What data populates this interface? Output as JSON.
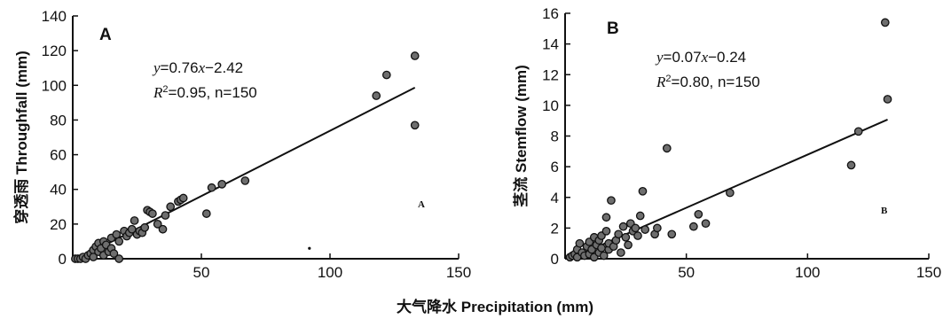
{
  "xlabel": "大气降水 Precipitation (mm)",
  "chart_data": [
    {
      "type": "scatter",
      "panel_label": "A",
      "corner_label": "A",
      "ylabel": "穿透雨 Throughfall (mm)",
      "xlim": [
        0,
        150
      ],
      "ylim": [
        0,
        140
      ],
      "xticks": [
        50,
        100,
        150
      ],
      "yticks": [
        0,
        20,
        40,
        60,
        80,
        100,
        120,
        140
      ],
      "equation": {
        "y": "y",
        "rhs": "=0.76",
        "x": "x",
        "const": "−2.42",
        "r2_prefix": "R",
        "r2_rest": "=0.95, n=150"
      },
      "fit": {
        "slope": 0.76,
        "intercept": -2.42,
        "x_range": [
          2,
          133
        ]
      },
      "points": [
        [
          1,
          0
        ],
        [
          2,
          0
        ],
        [
          3,
          0
        ],
        [
          4,
          1
        ],
        [
          5,
          0
        ],
        [
          6,
          2
        ],
        [
          7,
          3
        ],
        [
          8,
          5
        ],
        [
          8,
          1
        ],
        [
          9,
          7
        ],
        [
          10,
          9
        ],
        [
          10,
          4
        ],
        [
          11,
          6
        ],
        [
          12,
          10
        ],
        [
          12,
          2
        ],
        [
          13,
          8
        ],
        [
          14,
          4
        ],
        [
          15,
          12
        ],
        [
          15,
          6
        ],
        [
          16,
          3
        ],
        [
          17,
          14
        ],
        [
          18,
          10
        ],
        [
          18,
          0
        ],
        [
          20,
          16
        ],
        [
          21,
          13
        ],
        [
          22,
          15
        ],
        [
          23,
          17
        ],
        [
          24,
          22
        ],
        [
          25,
          14
        ],
        [
          26,
          16
        ],
        [
          27,
          15
        ],
        [
          28,
          18
        ],
        [
          29,
          28
        ],
        [
          30,
          27
        ],
        [
          31,
          26
        ],
        [
          33,
          20
        ],
        [
          35,
          17
        ],
        [
          36,
          25
        ],
        [
          38,
          30
        ],
        [
          41,
          33
        ],
        [
          42,
          34
        ],
        [
          43,
          35
        ],
        [
          52,
          26
        ],
        [
          54,
          41
        ],
        [
          58,
          43
        ],
        [
          67,
          45
        ],
        [
          118,
          94
        ],
        [
          122,
          106
        ],
        [
          133,
          117
        ],
        [
          133,
          77
        ]
      ],
      "outlier": [
        92,
        6
      ]
    },
    {
      "type": "scatter",
      "panel_label": "B",
      "corner_label": "B",
      "ylabel": "茎流 Stemflow (mm)",
      "xlim": [
        0,
        150
      ],
      "ylim": [
        0,
        16
      ],
      "xticks": [
        50,
        100,
        150
      ],
      "yticks": [
        0,
        2,
        4,
        6,
        8,
        10,
        12,
        14,
        16
      ],
      "equation": {
        "y": "y",
        "rhs": "=0.07",
        "x": "x",
        "const": "−0.24",
        "r2_prefix": "R",
        "r2_rest": "=0.80, n=150"
      },
      "fit": {
        "slope": 0.07,
        "intercept": -0.24,
        "x_range": [
          2,
          133
        ]
      },
      "points": [
        [
          2,
          0.1
        ],
        [
          3,
          0.2
        ],
        [
          4,
          0.3
        ],
        [
          5,
          0.6
        ],
        [
          5,
          0.1
        ],
        [
          6,
          1.0
        ],
        [
          7,
          0.4
        ],
        [
          8,
          0.2
        ],
        [
          9,
          0.8
        ],
        [
          10,
          1.1
        ],
        [
          10,
          0.3
        ],
        [
          11,
          0.6
        ],
        [
          12,
          1.4
        ],
        [
          12,
          0.1
        ],
        [
          13,
          0.9
        ],
        [
          14,
          1.2
        ],
        [
          14,
          0.4
        ],
        [
          15,
          1.5
        ],
        [
          15,
          0.7
        ],
        [
          16,
          0.2
        ],
        [
          17,
          1.8
        ],
        [
          17,
          2.7
        ],
        [
          18,
          0.6
        ],
        [
          18,
          1.0
        ],
        [
          19,
          3.8
        ],
        [
          20,
          0.8
        ],
        [
          21,
          1.2
        ],
        [
          22,
          1.6
        ],
        [
          23,
          0.4
        ],
        [
          24,
          2.1
        ],
        [
          25,
          1.4
        ],
        [
          26,
          0.9
        ],
        [
          27,
          2.3
        ],
        [
          28,
          1.8
        ],
        [
          29,
          2.0
        ],
        [
          30,
          1.5
        ],
        [
          31,
          2.8
        ],
        [
          32,
          4.4
        ],
        [
          33,
          1.9
        ],
        [
          37,
          1.6
        ],
        [
          38,
          2.0
        ],
        [
          42,
          7.2
        ],
        [
          44,
          1.6
        ],
        [
          53,
          2.1
        ],
        [
          55,
          2.9
        ],
        [
          58,
          2.3
        ],
        [
          68,
          4.3
        ],
        [
          118,
          6.1
        ],
        [
          121,
          8.3
        ],
        [
          132,
          15.4
        ],
        [
          133,
          10.4
        ]
      ]
    }
  ]
}
